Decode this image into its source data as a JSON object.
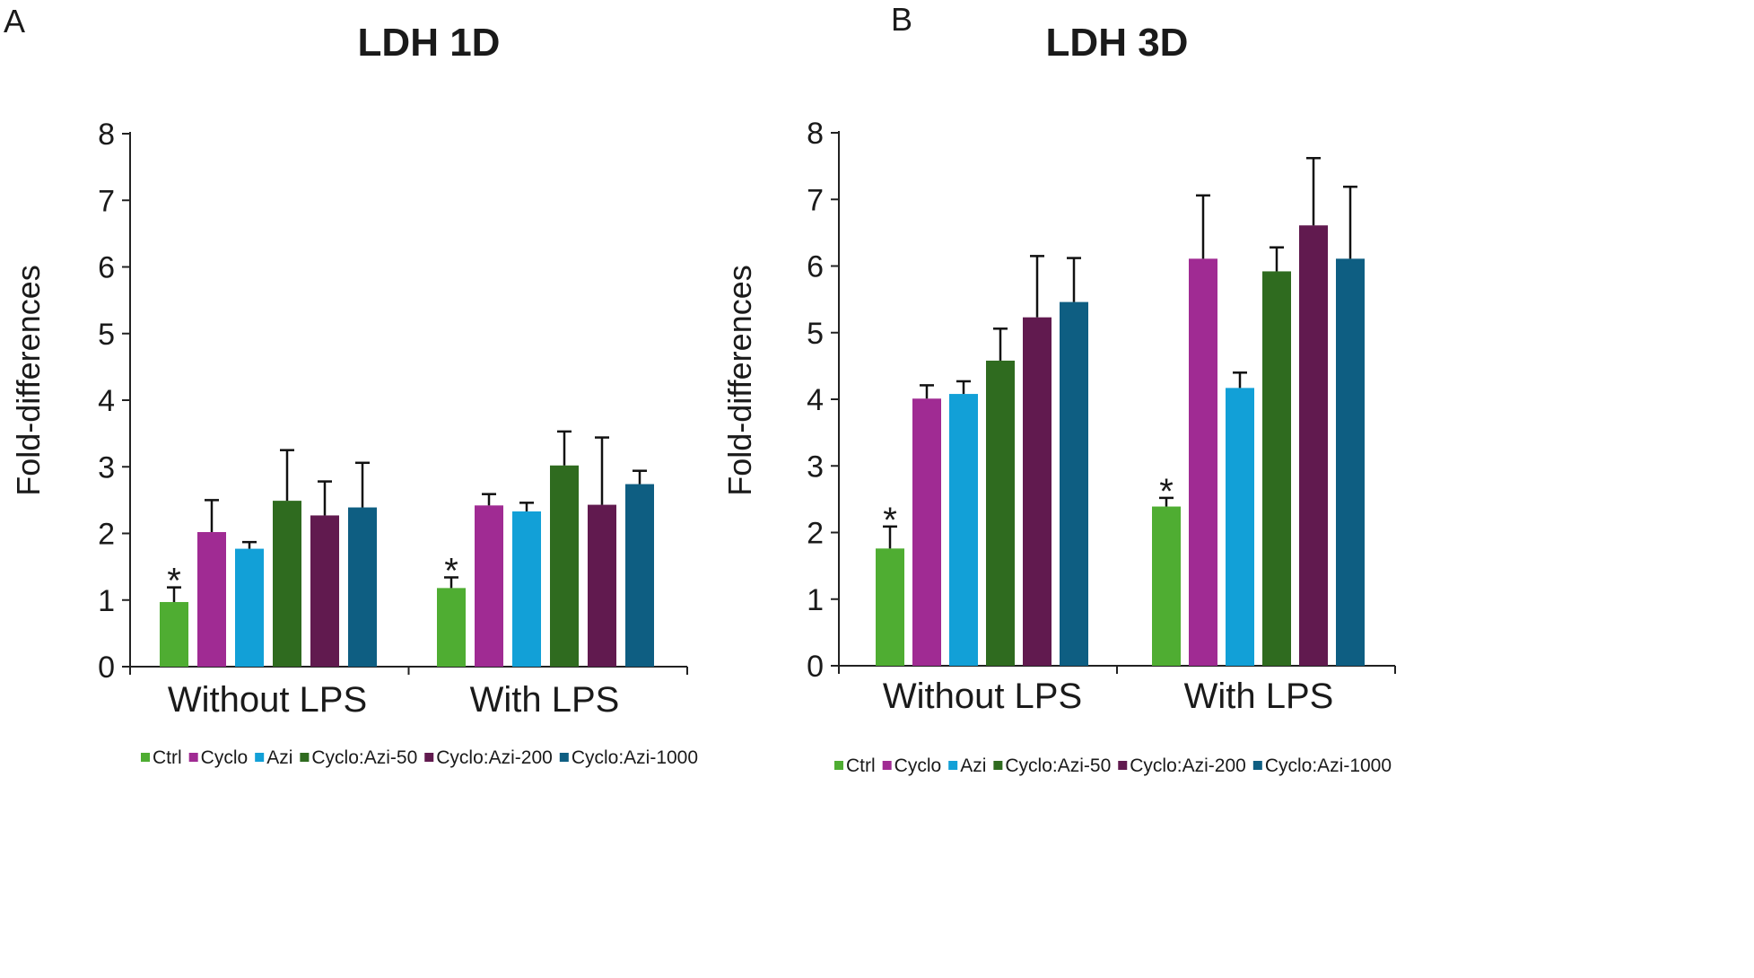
{
  "colors": {
    "Ctrl": "#4fad32",
    "Cyclo": "#a02b93",
    "Azi": "#12a0d7",
    "Cyclo:Azi-50": "#2f6b1f",
    "Cyclo:Azi-200": "#611a4f",
    "Cyclo:Azi-1000": "#0e5e82"
  },
  "chart_data": [
    {
      "type": "bar",
      "panel": "A",
      "title": "LDH 1D",
      "xlabel": "",
      "ylabel": "Fold-differences",
      "ylim": [
        0,
        8
      ],
      "yticks": [
        "0",
        "1",
        "2",
        "3",
        "4",
        "5",
        "6",
        "7",
        "8"
      ],
      "categories": [
        "Without LPS",
        "With LPS"
      ],
      "legend_position": "bottom",
      "grid": false,
      "series": [
        {
          "name": "Ctrl",
          "values": [
            0.97,
            1.18
          ],
          "errors": [
            0.22,
            0.16
          ]
        },
        {
          "name": "Cyclo",
          "values": [
            2.02,
            2.42
          ],
          "errors": [
            0.48,
            0.17
          ]
        },
        {
          "name": "Azi",
          "values": [
            1.77,
            2.33
          ],
          "errors": [
            0.1,
            0.13
          ]
        },
        {
          "name": "Cyclo:Azi-50",
          "values": [
            2.49,
            3.02
          ],
          "errors": [
            0.76,
            0.51
          ]
        },
        {
          "name": "Cyclo:Azi-200",
          "values": [
            2.27,
            2.43
          ],
          "errors": [
            0.51,
            1.01
          ]
        },
        {
          "name": "Cyclo:Azi-1000",
          "values": [
            2.39,
            2.74
          ],
          "errors": [
            0.67,
            0.2
          ]
        }
      ],
      "annotations": [
        {
          "category": "Without LPS",
          "series": "Ctrl",
          "text": "*"
        },
        {
          "category": "With LPS",
          "series": "Ctrl",
          "text": "*"
        }
      ]
    },
    {
      "type": "bar",
      "panel": "B",
      "title": "LDH 3D",
      "xlabel": "",
      "ylabel": "Fold-differences",
      "ylim": [
        0,
        8
      ],
      "yticks": [
        "0",
        "1",
        "2",
        "3",
        "4",
        "5",
        "6",
        "7",
        "8"
      ],
      "categories": [
        "Without LPS",
        "With LPS"
      ],
      "legend_position": "bottom",
      "grid": false,
      "series": [
        {
          "name": "Ctrl",
          "values": [
            1.76,
            2.39
          ],
          "errors": [
            0.33,
            0.13
          ]
        },
        {
          "name": "Cyclo",
          "values": [
            4.01,
            6.11
          ],
          "errors": [
            0.2,
            0.95
          ]
        },
        {
          "name": "Azi",
          "values": [
            4.08,
            4.17
          ],
          "errors": [
            0.19,
            0.23
          ]
        },
        {
          "name": "Cyclo:Azi-50",
          "values": [
            4.58,
            5.92
          ],
          "errors": [
            0.48,
            0.36
          ]
        },
        {
          "name": "Cyclo:Azi-200",
          "values": [
            5.23,
            6.61
          ],
          "errors": [
            0.92,
            1.01
          ]
        },
        {
          "name": "Cyclo:Azi-1000",
          "values": [
            5.46,
            6.11
          ],
          "errors": [
            0.66,
            1.08
          ]
        }
      ],
      "annotations": [
        {
          "category": "Without LPS",
          "series": "Ctrl",
          "text": "*"
        },
        {
          "category": "With LPS",
          "series": "Ctrl",
          "text": "*"
        }
      ]
    }
  ]
}
